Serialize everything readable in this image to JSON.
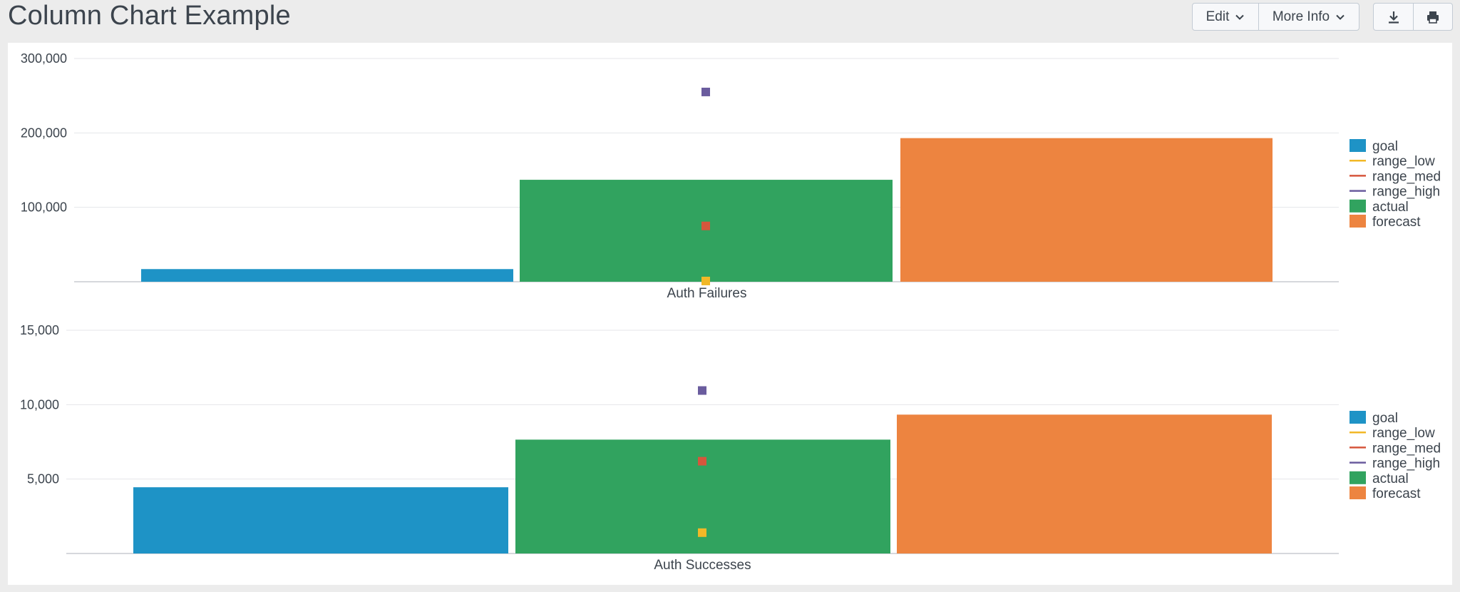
{
  "header": {
    "title": "Column Chart Example",
    "edit_label": "Edit",
    "more_info_label": "More Info",
    "download_icon": "download-icon",
    "print_icon": "print-icon"
  },
  "colors": {
    "goal": "#1e93c6",
    "range_low": "#f2b827",
    "range_med": "#d6563c",
    "range_high": "#6a5c9e",
    "actual": "#31a35f",
    "forecast": "#ed8440"
  },
  "chart_data": [
    {
      "type": "bar",
      "categories": [
        "Auth Failures"
      ],
      "series": [
        {
          "name": "goal",
          "kind": "column",
          "values": [
            17000
          ]
        },
        {
          "name": "range_low",
          "kind": "marker",
          "values": [
            1000
          ]
        },
        {
          "name": "range_med",
          "kind": "marker",
          "values": [
            75000
          ]
        },
        {
          "name": "range_high",
          "kind": "marker",
          "values": [
            255000
          ]
        },
        {
          "name": "actual",
          "kind": "column",
          "values": [
            137000
          ]
        },
        {
          "name": "forecast",
          "kind": "column",
          "values": [
            193000
          ]
        }
      ],
      "yticks": [
        100000,
        200000,
        300000
      ],
      "ytick_labels": [
        "100,000",
        "200,000",
        "300,000"
      ],
      "ylim": [
        0,
        300000
      ],
      "legend": "right",
      "grid": true
    },
    {
      "type": "bar",
      "categories": [
        "Auth Successes"
      ],
      "series": [
        {
          "name": "goal",
          "kind": "column",
          "values": [
            4450
          ]
        },
        {
          "name": "range_low",
          "kind": "marker",
          "values": [
            1400
          ]
        },
        {
          "name": "range_med",
          "kind": "marker",
          "values": [
            6200
          ]
        },
        {
          "name": "range_high",
          "kind": "marker",
          "values": [
            10950
          ]
        },
        {
          "name": "actual",
          "kind": "column",
          "values": [
            7650
          ]
        },
        {
          "name": "forecast",
          "kind": "column",
          "values": [
            9330
          ]
        }
      ],
      "yticks": [
        5000,
        10000,
        15000
      ],
      "ytick_labels": [
        "5,000",
        "10,000",
        "15,000"
      ],
      "ylim": [
        0,
        15000
      ],
      "legend": "right",
      "grid": true
    }
  ]
}
